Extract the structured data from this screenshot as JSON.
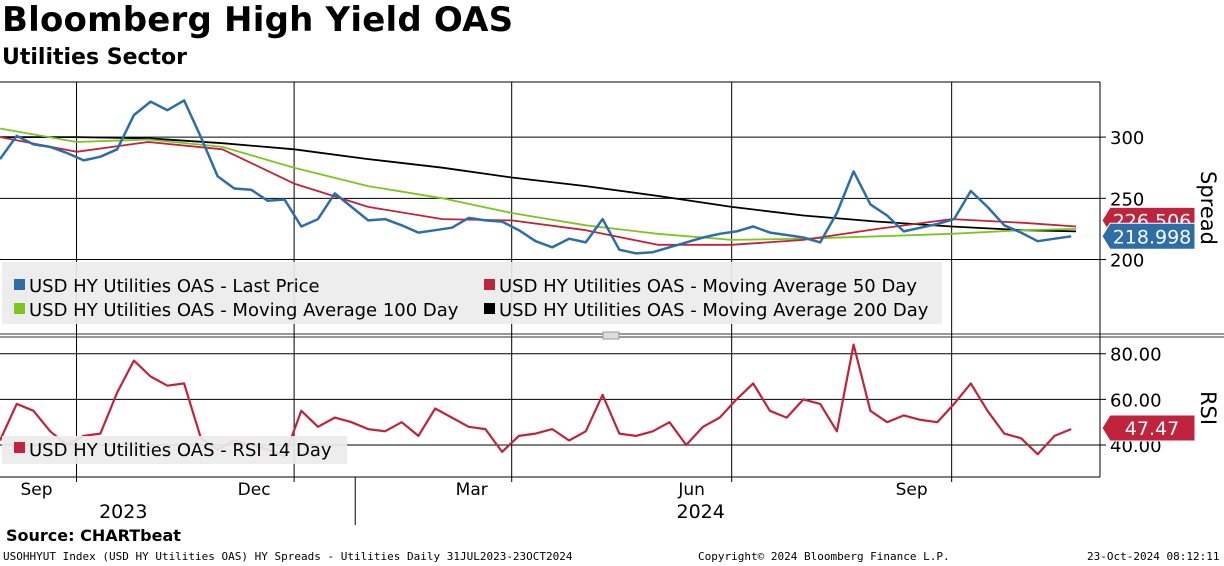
{
  "title": "Bloomberg High Yield OAS",
  "subtitle": "Utilities Sector",
  "source": "Source: CHARTbeat",
  "footer": {
    "left": "USOHHYUT Index (USD HY Utilities OAS) HY Spreads - Utilities  Daily 31JUL2023-23OCT2024",
    "center": "Copyright© 2024 Bloomberg Finance L.P.",
    "right": "23-Oct-2024 08:12:11"
  },
  "colors": {
    "last_price": "#2d6da8",
    "ma50": "#c0233c",
    "ma100": "#7dc51f",
    "ma200": "#000000",
    "rsi": "#c0233c",
    "grid": "#000000"
  },
  "chart_data": [
    {
      "type": "line",
      "ylabel": "Spread",
      "ylim": [
        140,
        345
      ],
      "yticks": [
        200,
        250,
        300
      ],
      "xlim": [
        "2023-07-31",
        "2024-10-23"
      ],
      "x_month_ticks": [
        {
          "date": "2023-09-01",
          "label": "Sep"
        },
        {
          "date": "2023-12-01",
          "label": "Dec"
        },
        {
          "date": "2024-03-01",
          "label": "Mar"
        },
        {
          "date": "2024-06-01",
          "label": "Jun"
        },
        {
          "date": "2024-09-01",
          "label": "Sep"
        }
      ],
      "x_year_labels": [
        {
          "date": "2023-10-01",
          "label": "2023"
        },
        {
          "date": "2024-06-01",
          "label": "2024"
        }
      ],
      "legend": "bottom-left",
      "grid": true,
      "series": [
        {
          "name": "USD HY Utilities OAS - Last Price",
          "last_value_label": "218.998",
          "x": [
            "2023-07-31",
            "2023-08-07",
            "2023-08-14",
            "2023-08-21",
            "2023-08-28",
            "2023-09-04",
            "2023-09-11",
            "2023-09-18",
            "2023-09-25",
            "2023-10-02",
            "2023-10-09",
            "2023-10-16",
            "2023-10-23",
            "2023-10-30",
            "2023-11-06",
            "2023-11-13",
            "2023-11-20",
            "2023-11-27",
            "2023-12-04",
            "2023-12-11",
            "2023-12-18",
            "2023-12-25",
            "2024-01-01",
            "2024-01-08",
            "2024-01-15",
            "2024-01-22",
            "2024-01-29",
            "2024-02-05",
            "2024-02-12",
            "2024-02-19",
            "2024-02-26",
            "2024-03-04",
            "2024-03-11",
            "2024-03-18",
            "2024-03-25",
            "2024-04-01",
            "2024-04-08",
            "2024-04-15",
            "2024-04-22",
            "2024-04-29",
            "2024-05-06",
            "2024-05-13",
            "2024-05-20",
            "2024-05-27",
            "2024-06-03",
            "2024-06-10",
            "2024-06-17",
            "2024-06-24",
            "2024-07-01",
            "2024-07-08",
            "2024-07-15",
            "2024-07-22",
            "2024-07-29",
            "2024-08-05",
            "2024-08-12",
            "2024-08-19",
            "2024-08-26",
            "2024-09-02",
            "2024-09-09",
            "2024-09-16",
            "2024-09-23",
            "2024-09-30",
            "2024-10-07",
            "2024-10-14",
            "2024-10-21"
          ],
          "values": [
            282,
            301,
            294,
            292,
            287,
            281,
            284,
            290,
            318,
            329,
            322,
            330,
            300,
            268,
            258,
            257,
            248,
            249,
            227,
            233,
            254,
            243,
            232,
            233,
            228,
            222,
            224,
            226,
            234,
            232,
            231,
            224,
            215,
            210,
            217,
            214,
            233,
            208,
            205,
            206,
            210,
            214,
            218,
            221,
            223,
            227,
            222,
            220,
            218,
            214,
            238,
            272,
            245,
            236,
            223,
            226,
            229,
            233,
            256,
            243,
            228,
            222,
            215,
            217,
            219
          ]
        },
        {
          "name": "USD HY Utilities OAS - Moving Average 50 Day",
          "last_value_label": "226.506",
          "x": [
            "2023-07-31",
            "2023-09-01",
            "2023-10-01",
            "2023-11-01",
            "2023-12-01",
            "2024-01-01",
            "2024-02-01",
            "2024-03-01",
            "2024-04-01",
            "2024-05-01",
            "2024-06-01",
            "2024-07-01",
            "2024-08-01",
            "2024-09-01",
            "2024-10-01",
            "2024-10-23"
          ],
          "values": [
            300,
            288,
            296,
            290,
            262,
            243,
            233,
            232,
            224,
            212,
            212,
            216,
            225,
            233,
            230,
            227
          ]
        },
        {
          "name": "USD HY Utilities OAS - Moving Average 100 Day",
          "x": [
            "2023-07-31",
            "2023-09-01",
            "2023-10-01",
            "2023-11-01",
            "2023-12-01",
            "2024-01-01",
            "2024-02-01",
            "2024-03-01",
            "2024-04-01",
            "2024-05-01",
            "2024-06-01",
            "2024-07-01",
            "2024-08-01",
            "2024-09-01",
            "2024-10-01",
            "2024-10-23"
          ],
          "values": [
            307,
            296,
            298,
            292,
            275,
            260,
            250,
            238,
            228,
            221,
            216,
            217,
            219,
            221,
            224,
            225
          ]
        },
        {
          "name": "USD HY Utilities OAS - Moving Average 200 Day",
          "x": [
            "2023-07-31",
            "2023-09-01",
            "2023-10-01",
            "2023-11-01",
            "2023-12-01",
            "2024-01-01",
            "2024-02-01",
            "2024-03-01",
            "2024-04-01",
            "2024-05-01",
            "2024-06-01",
            "2024-07-01",
            "2024-08-01",
            "2024-09-01",
            "2024-10-01",
            "2024-10-23"
          ],
          "values": [
            300,
            300,
            299,
            295,
            290,
            282,
            275,
            267,
            260,
            252,
            243,
            236,
            231,
            227,
            224,
            223
          ]
        }
      ]
    },
    {
      "type": "line",
      "ylabel": "RSI",
      "ylim": [
        26,
        86
      ],
      "yticks": [
        40,
        60,
        80
      ],
      "ytick_labels": [
        "40.00",
        "60.00",
        "80.00"
      ],
      "xlim": [
        "2023-07-31",
        "2024-10-23"
      ],
      "legend": "bottom-left",
      "grid": true,
      "series": [
        {
          "name": "USD HY Utilities OAS - RSI 14 Day",
          "last_value_label": "47.47",
          "x": [
            "2023-07-31",
            "2023-08-07",
            "2023-08-14",
            "2023-08-21",
            "2023-08-28",
            "2023-09-04",
            "2023-09-11",
            "2023-09-18",
            "2023-09-25",
            "2023-10-02",
            "2023-10-09",
            "2023-10-16",
            "2023-10-23",
            "2023-10-30",
            "2023-11-06",
            "2023-11-13",
            "2023-11-20",
            "2023-11-27",
            "2023-12-04",
            "2023-12-11",
            "2023-12-18",
            "2023-12-25",
            "2024-01-01",
            "2024-01-08",
            "2024-01-15",
            "2024-01-22",
            "2024-01-29",
            "2024-02-05",
            "2024-02-12",
            "2024-02-19",
            "2024-02-26",
            "2024-03-04",
            "2024-03-11",
            "2024-03-18",
            "2024-03-25",
            "2024-04-01",
            "2024-04-08",
            "2024-04-15",
            "2024-04-22",
            "2024-04-29",
            "2024-05-06",
            "2024-05-13",
            "2024-05-20",
            "2024-05-27",
            "2024-06-03",
            "2024-06-10",
            "2024-06-17",
            "2024-06-24",
            "2024-07-01",
            "2024-07-08",
            "2024-07-15",
            "2024-07-22",
            "2024-07-29",
            "2024-08-05",
            "2024-08-12",
            "2024-08-19",
            "2024-08-26",
            "2024-09-02",
            "2024-09-09",
            "2024-09-16",
            "2024-09-23",
            "2024-09-30",
            "2024-10-07",
            "2024-10-14",
            "2024-10-21"
          ],
          "values": [
            42,
            58,
            55,
            46,
            40,
            44,
            45,
            63,
            77,
            70,
            66,
            67,
            43,
            38,
            42,
            40,
            38,
            35,
            55,
            48,
            52,
            50,
            47,
            46,
            50,
            44,
            56,
            52,
            48,
            47,
            37,
            44,
            45,
            47,
            42,
            46,
            62,
            45,
            44,
            46,
            50,
            40,
            48,
            52,
            60,
            67,
            55,
            52,
            60,
            58,
            46,
            84,
            55,
            50,
            53,
            51,
            50,
            58,
            67,
            55,
            45,
            43,
            36,
            44,
            47
          ]
        }
      ]
    }
  ]
}
